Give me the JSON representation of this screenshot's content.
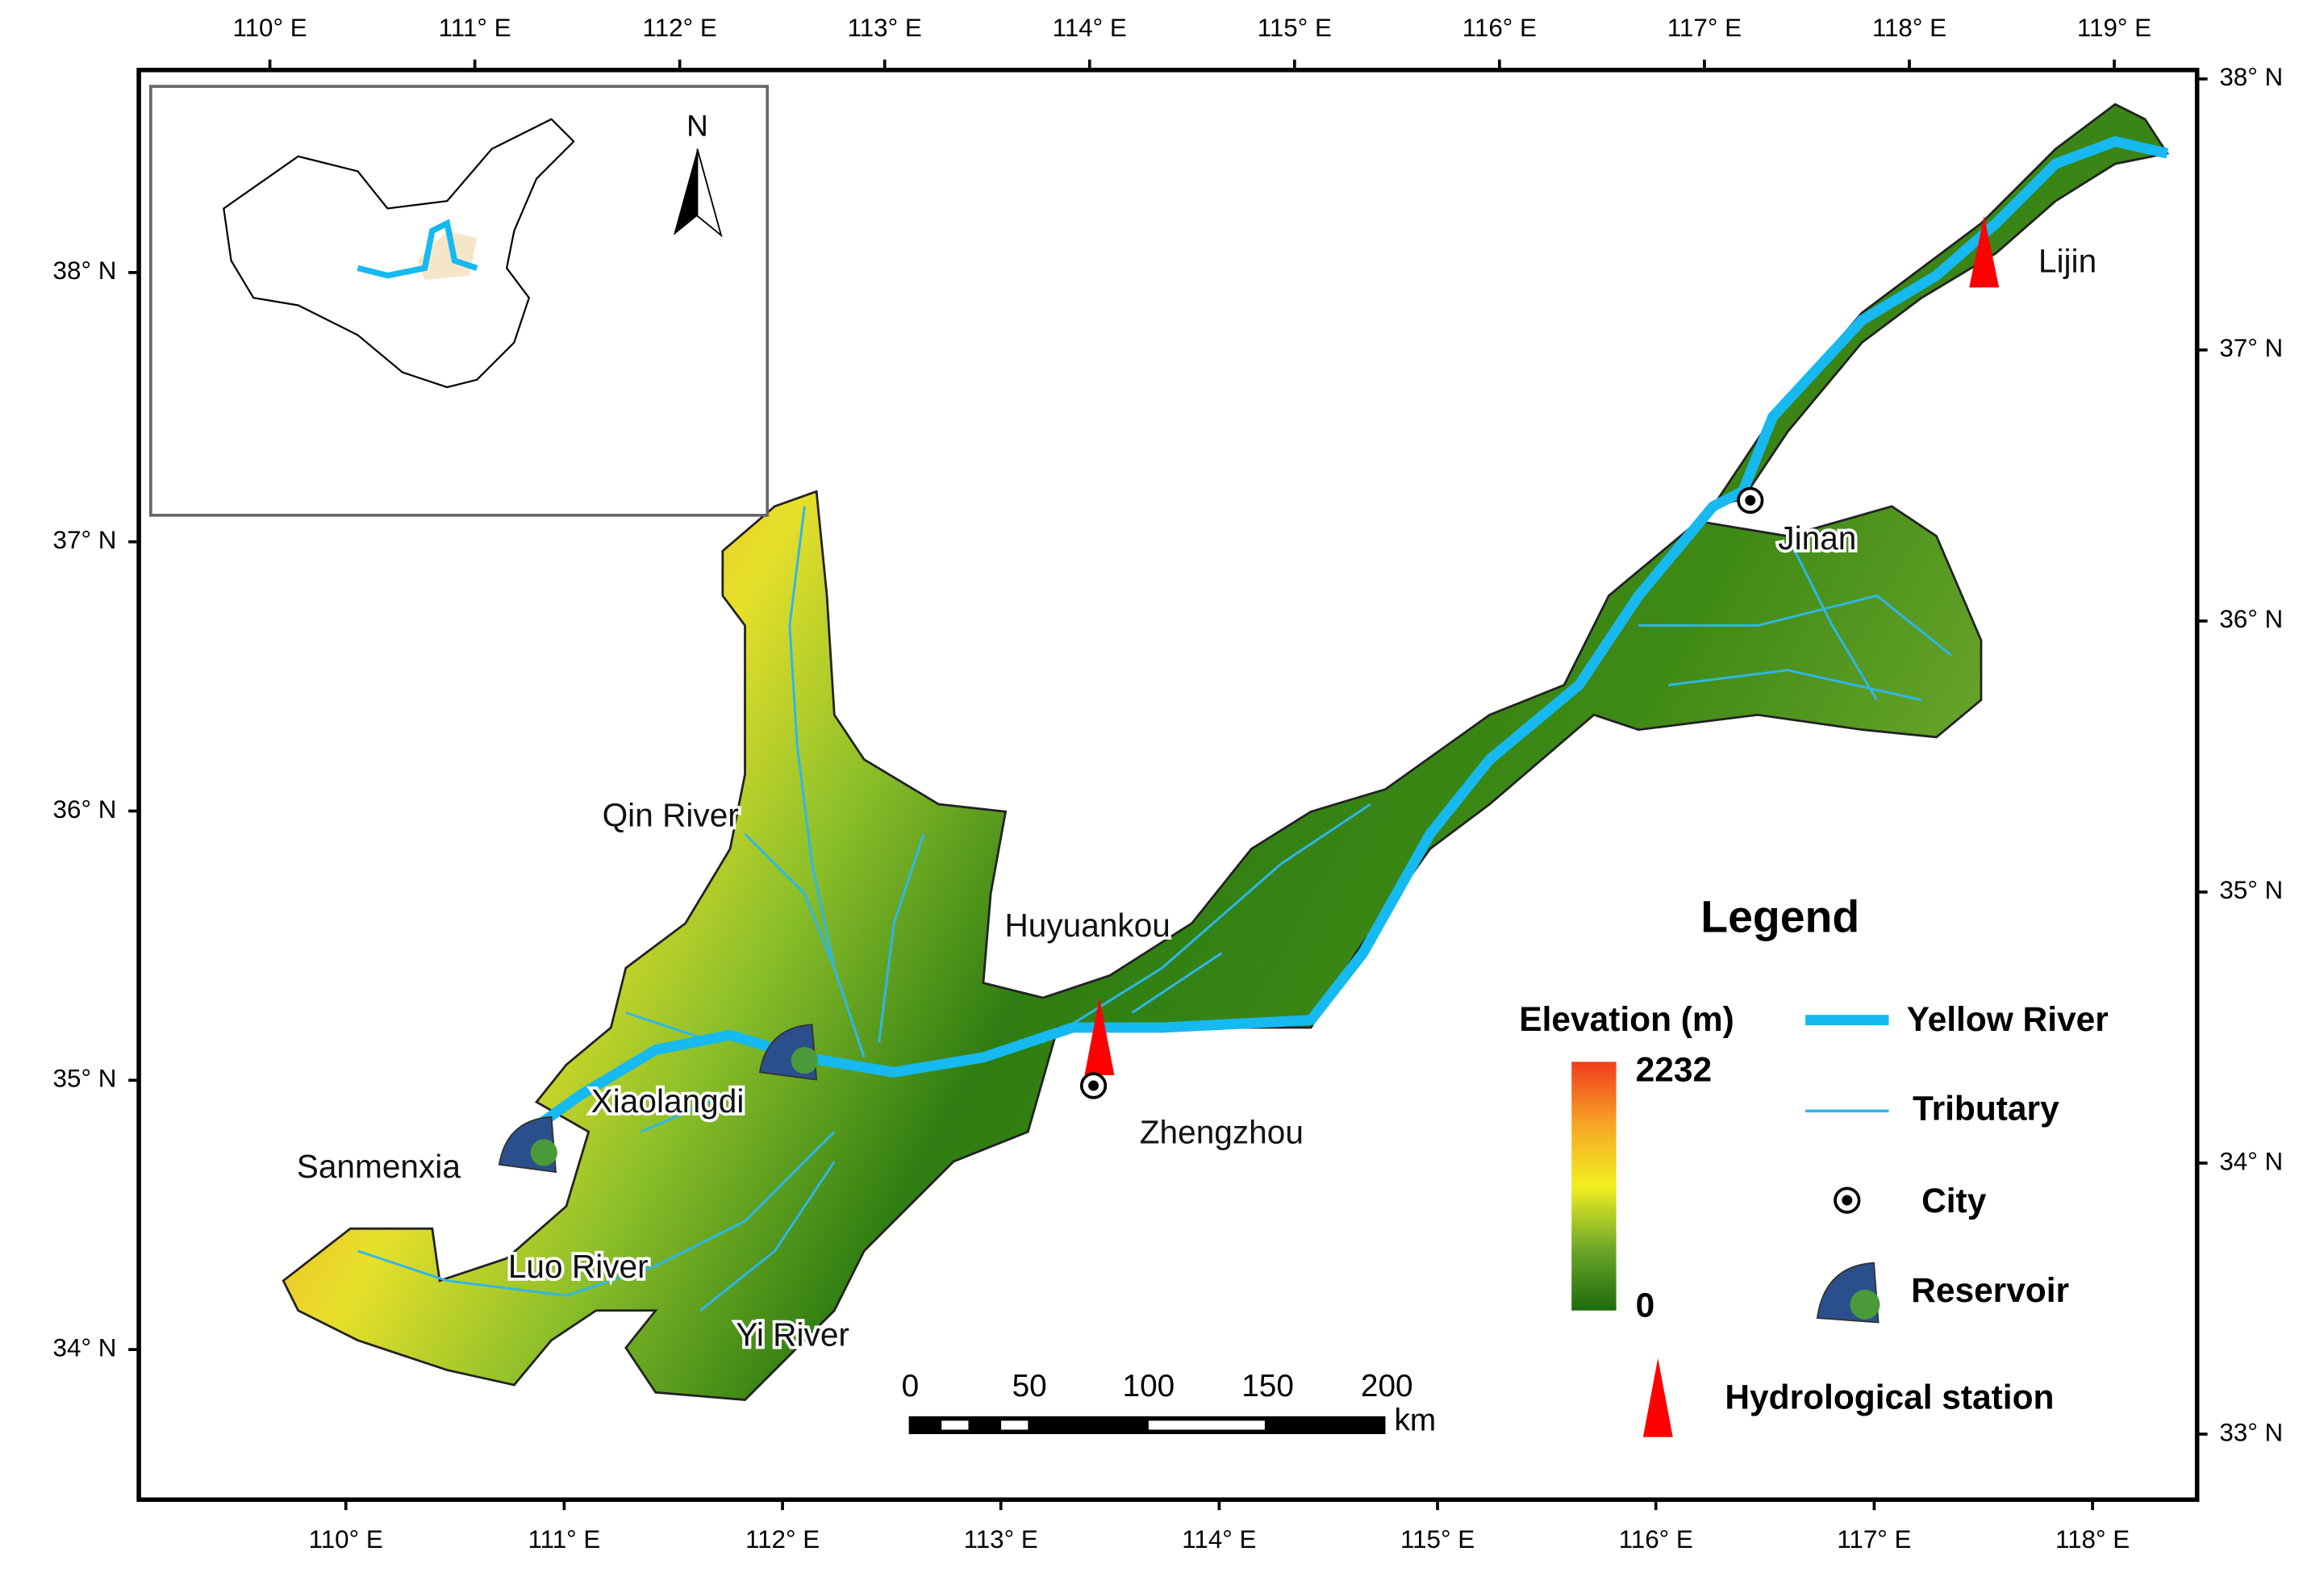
{
  "axes": {
    "top": [
      "110° E",
      "111° E",
      "112° E",
      "113° E",
      "114° E",
      "115° E",
      "116° E",
      "117° E",
      "118° E",
      "119° E"
    ],
    "bottom": [
      "110° E",
      "111° E",
      "112° E",
      "113° E",
      "114° E",
      "115° E",
      "116° E",
      "117° E",
      "118° E"
    ],
    "left": [
      "38° N",
      "37° N",
      "36° N",
      "35° N",
      "34° N"
    ],
    "right": [
      "38° N",
      "37° N",
      "36° N",
      "35° N",
      "34° N",
      "33° N"
    ]
  },
  "places": [
    "Lijin",
    "Jinan",
    "Huyuankou",
    "Zhengzhou",
    "Qin River",
    "Xiaolangdi",
    "Sanmenxia",
    "Luo River",
    "Yi River"
  ],
  "inset": {
    "north": "N"
  },
  "legend": {
    "title": "Legend",
    "elevation": {
      "title": "Elevation (m)",
      "max": "2232",
      "min": "0"
    },
    "items": [
      "Yellow River",
      "Tributary",
      "City",
      "Reservoir",
      "Hydrological station"
    ]
  },
  "scale_bar": {
    "ticks": [
      "0",
      "50",
      "100",
      "150",
      "200"
    ],
    "unit": "km"
  }
}
